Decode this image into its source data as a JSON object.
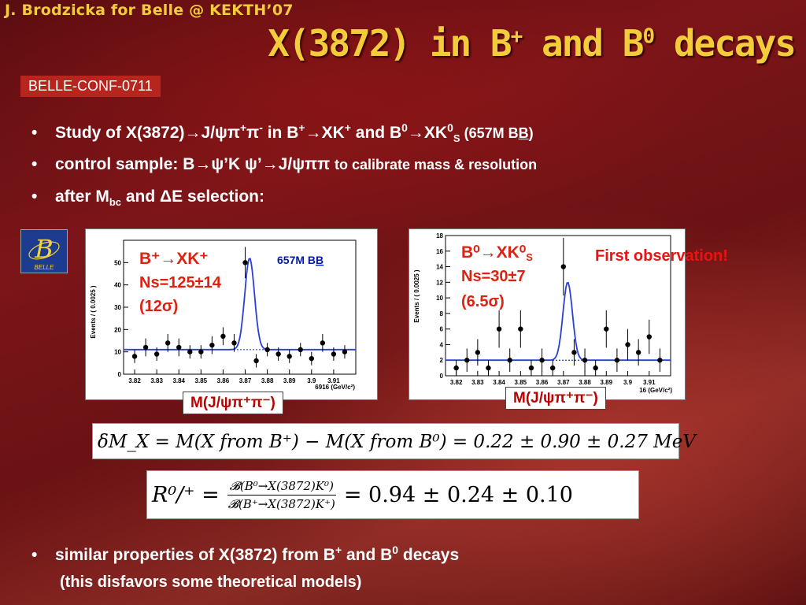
{
  "header": {
    "author_line": "J. Brodzicka for Belle @ KEKTH’07",
    "title_pre": "X(3872) in B",
    "title_sup1": "+",
    "title_mid": " and B",
    "title_sup2": "0",
    "title_post": " decays",
    "conf_tag": "BELLE-CONF-0711"
  },
  "bullets": {
    "b1_a": "Study of X(3872)→J/ψπ",
    "b1_sup1": "+",
    "b1_b": "π",
    "b1_sup2": "-",
    "b1_c": "  in B",
    "b1_sup3": "+",
    "b1_d": "→XK",
    "b1_sup4": "+",
    "b1_e": " and B",
    "b1_sup5": "0",
    "b1_f": "→XK",
    "b1_sup6": "0",
    "b1_sub1": "S",
    "b1_g": "  (657M B",
    "b1_h": "B",
    "b1_i": ")",
    "b2_a": "control sample: B→ψ’K  ψ’→J/ψππ ",
    "b2_b": "to calibrate mass & resolution",
    "b3_a": "after M",
    "b3_sub": "bc",
    "b3_b": " and ΔE selection:",
    "b4_a": "similar properties of X(3872) from B",
    "b4_sup1": "+",
    "b4_b": " and B",
    "b4_sup2": "0",
    "b4_c": " decays",
    "b4_sub": "(this disfavors some theoretical models)"
  },
  "logo": {
    "letter": "B",
    "text": "BELLE"
  },
  "plot_left": {
    "decay": "B⁺→XK⁺",
    "ns": "Ns=125±14",
    "signif": "(12σ)",
    "sample": "657M B",
    "sample_bar": "B",
    "ylabel": "Events / ( 0.0025 )",
    "xunit": "6916 (GeV/c²)",
    "axis_label": "M(J/ψπ⁺π⁻)"
  },
  "plot_right": {
    "decay": "B⁰→XK⁰",
    "decay_sub": "S",
    "ns": "Ns=30±7",
    "signif": "(6.5σ)",
    "ylabel": "Events / ( 0.0025 )",
    "xunit": "16 (GeV/c²)",
    "axis_label": "M(J/ψπ⁺π⁻)",
    "first_obs": "First observation!"
  },
  "chart_data": [
    {
      "type": "scatter",
      "x": [
        3.82,
        3.825,
        3.83,
        3.835,
        3.84,
        3.845,
        3.85,
        3.855,
        3.86,
        3.865,
        3.87,
        3.875,
        3.88,
        3.885,
        3.89,
        3.895,
        3.9,
        3.905,
        3.91,
        3.915
      ],
      "y": [
        8,
        12,
        9,
        14,
        12,
        10,
        10,
        13,
        17,
        14,
        50,
        6,
        11,
        9,
        8,
        11,
        7,
        14,
        9,
        10
      ],
      "yerr": [
        3,
        4,
        3,
        4,
        4,
        3,
        3,
        4,
        4,
        4,
        7,
        3,
        3,
        3,
        3,
        3,
        3,
        4,
        3,
        3
      ],
      "fit_background": 11,
      "fit_peak_x": 3.872,
      "fit_peak_y": 52,
      "xlim": [
        3.815,
        3.92
      ],
      "ylim": [
        0,
        60
      ],
      "yticks": [
        0,
        10,
        20,
        30,
        40,
        50
      ],
      "xticks": [
        3.82,
        3.83,
        3.84,
        3.85,
        3.86,
        3.87,
        3.88,
        3.89,
        3.9,
        3.91
      ]
    },
    {
      "type": "scatter",
      "x": [
        3.82,
        3.825,
        3.83,
        3.835,
        3.84,
        3.845,
        3.85,
        3.855,
        3.86,
        3.865,
        3.87,
        3.875,
        3.88,
        3.885,
        3.89,
        3.895,
        3.9,
        3.905,
        3.91,
        3.915
      ],
      "y": [
        1,
        2,
        3,
        1,
        6,
        2,
        6,
        1,
        2,
        1,
        14,
        3,
        2,
        1,
        6,
        2,
        4,
        3,
        5,
        2
      ],
      "yerr": [
        1,
        1.5,
        1.7,
        1,
        2.4,
        1.5,
        2.4,
        1,
        1.5,
        1,
        3.7,
        1.7,
        1.5,
        1,
        2.4,
        1.5,
        2,
        1.7,
        2.2,
        1.5
      ],
      "fit_background": 2,
      "fit_peak_x": 3.872,
      "fit_peak_y": 12,
      "xlim": [
        3.815,
        3.92
      ],
      "ylim": [
        0,
        18
      ],
      "yticks": [
        0,
        2,
        4,
        6,
        8,
        10,
        12,
        14,
        16,
        18
      ],
      "xticks": [
        3.82,
        3.83,
        3.84,
        3.85,
        3.86,
        3.87,
        3.88,
        3.89,
        3.9,
        3.91
      ]
    }
  ],
  "equations": {
    "eq1": "δM_X = M(X from B⁺) − M(X from B⁰) = 0.22 ± 0.90 ± 0.27 MeV",
    "eq2_lhs": "R⁰/⁺ =",
    "eq2_num": "𝓑(B⁰→X(3872)K⁰)",
    "eq2_den": "𝓑(B⁺→X(3872)K⁺)",
    "eq2_rhs": "= 0.94 ± 0.24 ± 0.10"
  }
}
